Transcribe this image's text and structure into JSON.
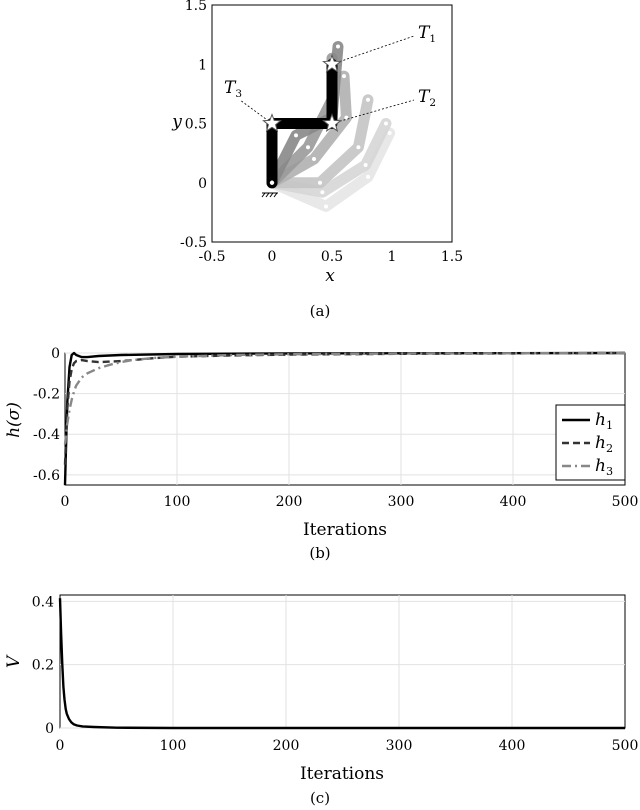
{
  "chart_data": [
    {
      "id": "a",
      "type": "scatter",
      "caption": "(a)",
      "xlabel": "x",
      "ylabel": "y",
      "xlim": [
        -0.5,
        1.5
      ],
      "ylim": [
        -0.5,
        1.5
      ],
      "x_ticks": [
        "-0.5",
        "0",
        "0.5",
        "1",
        "1.5"
      ],
      "y_ticks": [
        "1.5",
        "1",
        "0.5",
        "0",
        "-0.5"
      ],
      "grid": false,
      "targets": [
        {
          "label": "T",
          "sub": "1",
          "x": 0.5,
          "y": 1.0
        },
        {
          "label": "T",
          "sub": "2",
          "x": 0.5,
          "y": 0.5
        },
        {
          "label": "T",
          "sub": "3",
          "x": 0.0,
          "y": 0.5
        }
      ],
      "arm_final": [
        [
          0,
          0
        ],
        [
          0,
          0.5
        ],
        [
          0.5,
          0.5
        ],
        [
          0.5,
          1.0
        ]
      ],
      "arm_snapshots": [
        {
          "color": "#e6e6e6",
          "points": [
            [
              0,
              0
            ],
            [
              0.45,
              -0.2
            ],
            [
              0.8,
              0.05
            ],
            [
              0.98,
              0.42
            ]
          ]
        },
        {
          "color": "#d6d6d6",
          "points": [
            [
              0,
              0
            ],
            [
              0.42,
              -0.08
            ],
            [
              0.78,
              0.15
            ],
            [
              0.95,
              0.5
            ]
          ]
        },
        {
          "color": "#c4c4c4",
          "points": [
            [
              0,
              0
            ],
            [
              0.4,
              0.0
            ],
            [
              0.72,
              0.3
            ],
            [
              0.8,
              0.7
            ]
          ]
        },
        {
          "color": "#b0b0b0",
          "points": [
            [
              0,
              0
            ],
            [
              0.35,
              0.2
            ],
            [
              0.62,
              0.55
            ],
            [
              0.6,
              0.9
            ]
          ]
        },
        {
          "color": "#9a9a9a",
          "points": [
            [
              0,
              0
            ],
            [
              0.3,
              0.3
            ],
            [
              0.5,
              0.7
            ],
            [
              0.5,
              1.05
            ]
          ]
        },
        {
          "color": "#888888",
          "points": [
            [
              0,
              0
            ],
            [
              0.2,
              0.4
            ],
            [
              0.5,
              0.55
            ],
            [
              0.55,
              1.15
            ]
          ]
        }
      ]
    },
    {
      "id": "b",
      "type": "line",
      "caption": "(b)",
      "xlabel": "Iterations",
      "ylabel": "h(σ)",
      "xlim": [
        0,
        500
      ],
      "ylim": [
        -0.65,
        0
      ],
      "x_ticks": [
        "0",
        "100",
        "200",
        "300",
        "400",
        "500"
      ],
      "y_ticks": [
        "0",
        "-0.2",
        "-0.4",
        "-0.6"
      ],
      "grid": true,
      "legend": "right",
      "series": [
        {
          "name": "h",
          "sub": "1",
          "color": "#000000",
          "dash": "",
          "x": [
            0,
            2,
            4,
            6,
            8,
            10,
            15,
            20,
            30,
            50,
            100,
            200,
            500
          ],
          "y": [
            -0.65,
            -0.25,
            -0.07,
            -0.01,
            0.0,
            -0.01,
            -0.02,
            -0.02,
            -0.015,
            -0.01,
            -0.005,
            -0.002,
            0.0
          ]
        },
        {
          "name": "h",
          "sub": "2",
          "color": "#333333",
          "dash": "7,4",
          "x": [
            0,
            2,
            4,
            6,
            8,
            10,
            15,
            20,
            30,
            50,
            80,
            100,
            150,
            200,
            300,
            500
          ],
          "y": [
            -0.55,
            -0.28,
            -0.14,
            -0.08,
            -0.05,
            -0.04,
            -0.035,
            -0.04,
            -0.045,
            -0.04,
            -0.025,
            -0.018,
            -0.012,
            -0.008,
            -0.004,
            0.0
          ]
        },
        {
          "name": "h",
          "sub": "3",
          "color": "#888888",
          "dash": "9,4,2,4",
          "x": [
            0,
            2,
            4,
            6,
            8,
            10,
            15,
            20,
            30,
            40,
            50,
            60,
            80,
            100,
            150,
            200,
            300,
            500
          ],
          "y": [
            -0.45,
            -0.35,
            -0.28,
            -0.23,
            -0.19,
            -0.16,
            -0.12,
            -0.1,
            -0.075,
            -0.058,
            -0.045,
            -0.035,
            -0.024,
            -0.018,
            -0.01,
            -0.006,
            -0.003,
            0.0
          ]
        }
      ]
    },
    {
      "id": "c",
      "type": "line",
      "caption": "(c)",
      "xlabel": "Iterations",
      "ylabel": "V",
      "xlim": [
        0,
        500
      ],
      "ylim": [
        0,
        0.42
      ],
      "x_ticks": [
        "0",
        "100",
        "200",
        "300",
        "400",
        "500"
      ],
      "y_ticks": [
        "0.4",
        "0.2",
        "0"
      ],
      "grid": true,
      "series": [
        {
          "name": "",
          "color": "#000000",
          "dash": "",
          "x": [
            0,
            1,
            2,
            3,
            4,
            5,
            6,
            8,
            10,
            12,
            15,
            20,
            30,
            50,
            100,
            200,
            500
          ],
          "y": [
            0.41,
            0.3,
            0.2,
            0.13,
            0.09,
            0.06,
            0.045,
            0.028,
            0.018,
            0.012,
            0.008,
            0.005,
            0.003,
            0.001,
            0.0,
            0.0,
            0.0
          ]
        }
      ]
    }
  ]
}
